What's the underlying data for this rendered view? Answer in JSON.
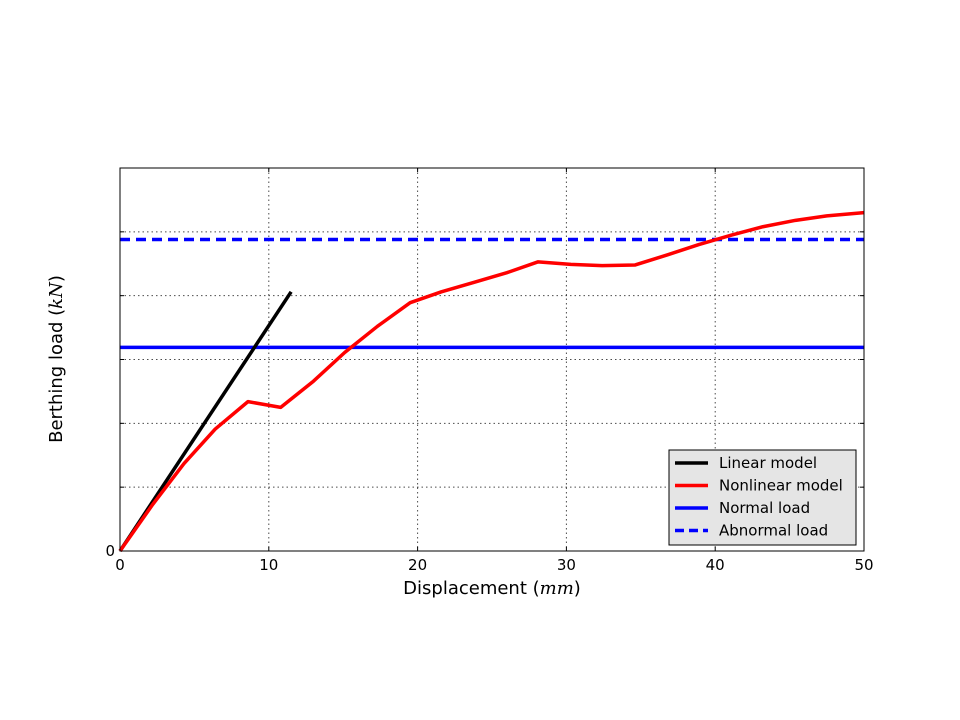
{
  "chart_data": {
    "type": "line",
    "xlabel": "Displacement",
    "xlabel_unit": "mm",
    "ylabel": "Berthing load",
    "ylabel_unit": "kN",
    "xlim": [
      0,
      50
    ],
    "ylim": [
      0,
      6
    ],
    "x_ticks": [
      0,
      10,
      20,
      30,
      40,
      50
    ],
    "y_ticks": [
      0,
      1,
      2,
      3,
      4,
      5
    ],
    "y_tick_labels": [
      "0",
      "",
      "",
      "",
      "",
      ""
    ],
    "grid": true,
    "legend_position": "lower-right",
    "series": [
      {
        "name": "Linear model",
        "color": "#000000",
        "style": "solid",
        "x": [
          0,
          11.5
        ],
        "y": [
          0,
          4.06
        ]
      },
      {
        "name": "Nonlinear model",
        "color": "#ff0000",
        "style": "solid",
        "x": [
          0,
          2.2,
          4.3,
          6.4,
          8.6,
          10.8,
          13.0,
          15.1,
          17.3,
          19.5,
          21.6,
          23.8,
          26.0,
          28.1,
          30.3,
          32.4,
          34.6,
          36.8,
          38.9,
          41.1,
          43.2,
          45.4,
          47.5,
          50.0
        ],
        "y": [
          0,
          0.73,
          1.37,
          1.91,
          2.34,
          2.25,
          2.66,
          3.11,
          3.52,
          3.89,
          4.06,
          4.21,
          4.36,
          4.53,
          4.49,
          4.47,
          4.48,
          4.64,
          4.8,
          4.95,
          5.08,
          5.18,
          5.25,
          5.3
        ]
      },
      {
        "name": "Normal load",
        "color": "#0000ff",
        "style": "solid",
        "x": [
          0,
          50
        ],
        "y": [
          3.19,
          3.19
        ]
      },
      {
        "name": "Abnormal load",
        "color": "#0000ff",
        "style": "dashed",
        "x": [
          0,
          50
        ],
        "y": [
          4.88,
          4.88
        ]
      }
    ]
  }
}
